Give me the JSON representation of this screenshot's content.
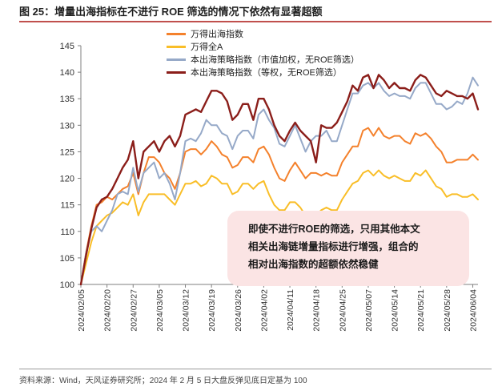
{
  "figure_title": "图 25：增量出海指标在不进行 ROE 筛选的情况下依然有显著超额",
  "source_note": "资料来源：Wind，天风证券研究所；2024 年 2 月 5 日大盘反弹见底日定基为 100",
  "annotation": {
    "lines": [
      "即使不进行ROE的筛选，只用其他本文",
      "相关出海链增量指标进行增强，组合的",
      "相对出海指数的超额依然稳健"
    ]
  },
  "colors": {
    "wande_chuhai": "#F4812C",
    "wande_quana": "#F9BE28",
    "bench_cap": "#96A9C8",
    "bench_eq": "#8B1E1A",
    "title_rule": "#C0504D",
    "annotation_bg": "#FBE4E4"
  },
  "chart_data": {
    "type": "line",
    "ylim": [
      100,
      145
    ],
    "yticks": [
      100,
      105,
      110,
      115,
      120,
      125,
      130,
      135,
      140,
      145
    ],
    "grid": false,
    "legend_position": "top-center",
    "x_ticks": [
      "2024/02/05",
      "2024/02/20",
      "2024/02/27",
      "2024/03/05",
      "2024/03/12",
      "2024/03/19",
      "2024/03/26",
      "2024/04/02",
      "2024/04/11",
      "2024/04/18",
      "2024/04/25",
      "2024/05/07",
      "2024/05/14",
      "2024/05/21",
      "2024/05/28",
      "2024/06/04"
    ],
    "x": [
      "2024/02/05",
      "2024/02/06",
      "2024/02/07",
      "2024/02/08",
      "2024/02/19",
      "2024/02/20",
      "2024/02/21",
      "2024/02/22",
      "2024/02/23",
      "2024/02/26",
      "2024/02/27",
      "2024/02/28",
      "2024/02/29",
      "2024/03/01",
      "2024/03/04",
      "2024/03/05",
      "2024/03/06",
      "2024/03/07",
      "2024/03/08",
      "2024/03/11",
      "2024/03/12",
      "2024/03/13",
      "2024/03/14",
      "2024/03/15",
      "2024/03/18",
      "2024/03/19",
      "2024/03/20",
      "2024/03/21",
      "2024/03/22",
      "2024/03/25",
      "2024/03/26",
      "2024/03/27",
      "2024/03/28",
      "2024/03/29",
      "2024/04/01",
      "2024/04/02",
      "2024/04/03",
      "2024/04/08",
      "2024/04/09",
      "2024/04/10",
      "2024/04/11",
      "2024/04/12",
      "2024/04/15",
      "2024/04/16",
      "2024/04/17",
      "2024/04/18",
      "2024/04/19",
      "2024/04/22",
      "2024/04/23",
      "2024/04/24",
      "2024/04/25",
      "2024/04/26",
      "2024/04/29",
      "2024/04/30",
      "2024/05/06",
      "2024/05/07",
      "2024/05/08",
      "2024/05/09",
      "2024/05/10",
      "2024/05/13",
      "2024/05/14",
      "2024/05/15",
      "2024/05/16",
      "2024/05/17",
      "2024/05/20",
      "2024/05/21",
      "2024/05/22",
      "2024/05/23",
      "2024/05/24",
      "2024/05/27",
      "2024/05/28",
      "2024/05/29",
      "2024/05/30",
      "2024/05/31",
      "2024/06/03",
      "2024/06/04",
      "2024/06/05"
    ],
    "series": [
      {
        "name": "万得出海指数",
        "color_key": "wande_chuhai",
        "values": [
          100,
          106,
          111,
          115,
          115.5,
          116.5,
          116,
          117,
          118,
          118.5,
          121,
          117,
          121,
          124,
          124,
          123,
          121,
          120,
          118,
          121,
          125,
          125.5,
          125.5,
          124.5,
          125.5,
          127,
          126,
          124.5,
          124,
          122,
          122.5,
          124,
          124,
          123,
          125.5,
          126,
          124.5,
          122,
          120,
          119.5,
          121.5,
          123,
          121.5,
          120,
          121,
          121,
          120.5,
          121,
          120.5,
          120.5,
          123,
          124.5,
          126,
          126,
          129,
          129.5,
          128,
          129.5,
          128,
          127.5,
          128,
          128,
          127,
          126.5,
          128.5,
          128,
          128.5,
          127.5,
          126,
          125,
          123,
          123,
          123.5,
          123.5,
          123.5,
          124.5,
          123.5
        ]
      },
      {
        "name": "万得全A",
        "color_key": "wande_quana",
        "values": [
          100,
          104,
          108,
          111,
          112,
          113,
          113.5,
          114.5,
          115.5,
          115,
          117,
          113,
          115.5,
          117,
          117,
          117,
          117,
          116,
          115,
          117,
          119,
          119,
          119.5,
          118.5,
          119,
          120.5,
          120,
          119,
          119,
          117,
          117.5,
          119,
          119,
          118,
          119,
          119.5,
          117,
          115,
          114,
          114,
          115.5,
          115.5,
          114.5,
          113,
          113.5,
          113,
          114,
          114.5,
          114,
          114,
          116,
          117.5,
          119,
          119.5,
          121,
          121.5,
          120.5,
          121.5,
          120.5,
          120,
          120.5,
          120,
          119.5,
          119.5,
          121,
          120.5,
          121.5,
          120,
          118.5,
          118,
          116.5,
          117,
          117,
          116.5,
          116.5,
          117,
          116
        ]
      },
      {
        "name": "本出海策略指数（市值加权，无ROE筛选）",
        "color_key": "bench_cap",
        "values": [
          100,
          106,
          110,
          111,
          110,
          112,
          114,
          117,
          117.5,
          117,
          122,
          117.5,
          121,
          122,
          123,
          120,
          121,
          119,
          116,
          121,
          127,
          127.5,
          127,
          128.5,
          131,
          130,
          130,
          128.5,
          128,
          125.5,
          128,
          129,
          129,
          127.5,
          132,
          133,
          131,
          129.5,
          126.5,
          126,
          128,
          130,
          127.5,
          125,
          127,
          128,
          128,
          129,
          127,
          127,
          130,
          133,
          136,
          136,
          137.5,
          138,
          137,
          138,
          136.5,
          135.5,
          136,
          135.5,
          135.5,
          135,
          137,
          138,
          138,
          136,
          134,
          134,
          133,
          133.5,
          134.5,
          134,
          136,
          139,
          137.5
        ]
      },
      {
        "name": "本出海策略指数（等权，无ROE筛选）",
        "color_key": "bench_eq",
        "values": [
          100,
          105.5,
          110.5,
          114.5,
          116,
          116.5,
          118,
          120,
          122,
          123.5,
          127,
          120,
          125,
          126,
          127,
          125,
          127,
          128,
          126,
          128,
          132,
          132.5,
          133,
          132.5,
          134.5,
          136.5,
          136.5,
          136,
          134.5,
          131,
          132,
          134,
          134,
          131,
          135,
          135,
          133,
          130,
          128,
          127,
          129,
          130.5,
          129,
          128,
          127,
          123,
          130,
          129.5,
          129.5,
          130.5,
          132.5,
          134.5,
          137.5,
          136.5,
          139,
          139.5,
          137,
          139.5,
          138.5,
          137,
          138,
          137,
          137,
          136.5,
          138.5,
          139.5,
          139,
          137.5,
          136,
          135.5,
          136.5,
          136,
          135.5,
          135.5,
          135,
          136,
          133
        ]
      }
    ]
  }
}
